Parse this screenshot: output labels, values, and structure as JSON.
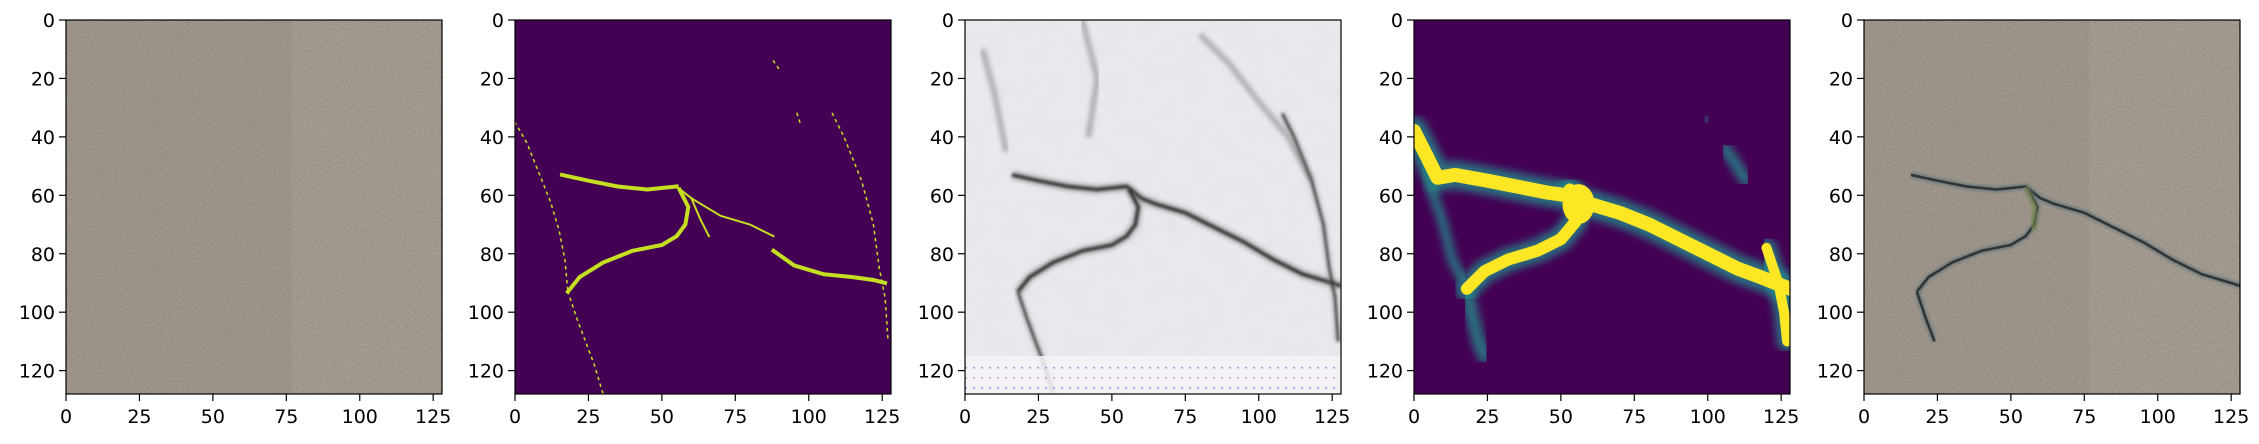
{
  "figure": {
    "panels": [
      {
        "name": "input-photo",
        "content": "concrete-surface-photo"
      },
      {
        "name": "ground-truth-mask",
        "content": "binary-crack-mask"
      },
      {
        "name": "generated-image",
        "content": "reconstructed-crack-image"
      },
      {
        "name": "predicted-heatmap",
        "content": "crack-probability-map"
      },
      {
        "name": "overlay",
        "content": "prediction-overlay-on-photo"
      }
    ],
    "x_ticks": [
      "0",
      "25",
      "50",
      "75",
      "100",
      "125"
    ],
    "y_ticks": [
      "0",
      "20",
      "40",
      "60",
      "80",
      "100",
      "120"
    ],
    "axis_range": [
      0,
      128
    ],
    "colors": {
      "mask_background": "#440154",
      "mask_crack": "#c5e021",
      "heat_background": "#440154",
      "heat_core": "#fde725",
      "heat_edge": "#21918c",
      "concrete_base": "#9a8f84",
      "generated_background": "#e9e9ee",
      "crack_dark": "#2a2a2a"
    }
  }
}
